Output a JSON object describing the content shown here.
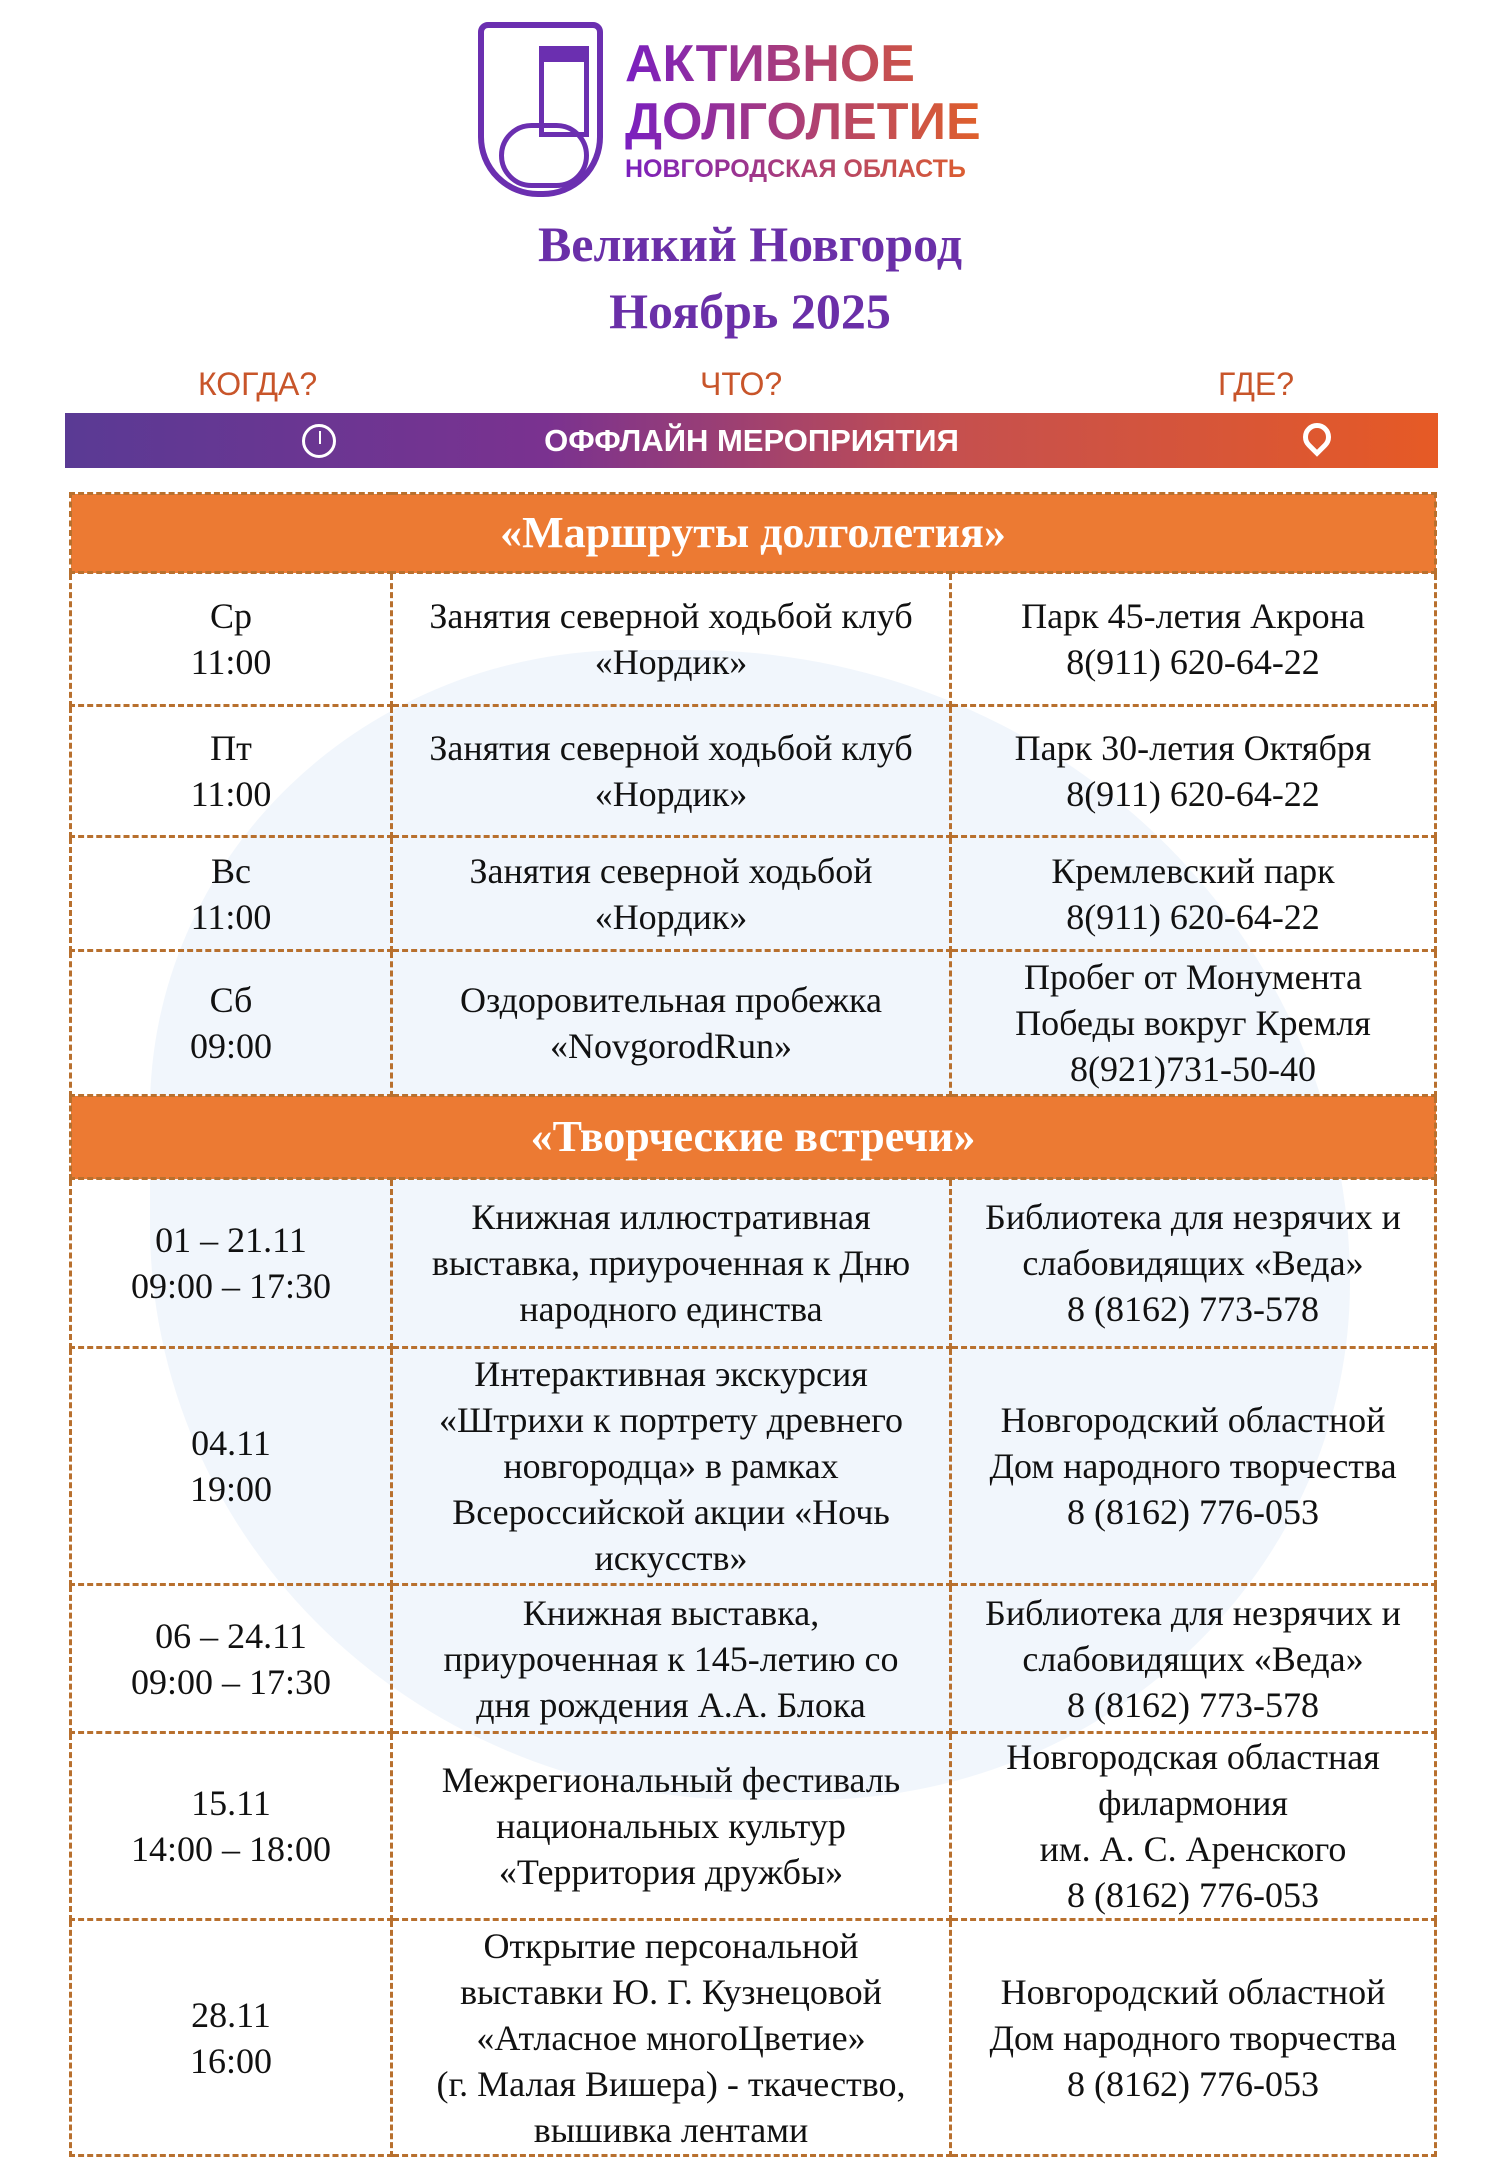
{
  "logo": {
    "line1": "АКТИВНОЕ",
    "line2": "ДОЛГОЛЕТИЕ",
    "line3": "НОВГОРОДСКАЯ ОБЛАСТЬ"
  },
  "title": {
    "city": "Великий Новгород",
    "month": "Ноябрь 2025"
  },
  "columns": {
    "when": "КОГДА?",
    "what": "ЧТО?",
    "where": "ГДЕ?"
  },
  "banner": {
    "label": "ОФФЛАЙН МЕРОПРИЯТИЯ",
    "left_icon": "clock-icon",
    "right_icon": "map-pin-icon"
  },
  "colors": {
    "accent_orange": "#ec7a33",
    "accent_purple": "#6a2fa8"
  },
  "sections": [
    {
      "title": "«Маршруты долголетия»",
      "rows": [
        {
          "when": [
            "Ср",
            "11:00"
          ],
          "what": [
            "Занятия северной ходьбой клуб",
            "«Нордик»"
          ],
          "where": [
            "Парк 45-летия Акрона",
            "8(911) 620-64-22"
          ]
        },
        {
          "when": [
            "Пт",
            "11:00"
          ],
          "what": [
            "Занятия северной ходьбой клуб",
            "«Нордик»"
          ],
          "where": [
            "Парк 30-летия Октября",
            "8(911) 620-64-22"
          ]
        },
        {
          "when": [
            "Вс",
            "11:00"
          ],
          "what": [
            "Занятия северной ходьбой",
            "«Нордик»"
          ],
          "where": [
            "Кремлевский парк",
            "8(911) 620-64-22"
          ]
        },
        {
          "when": [
            "Сб",
            "09:00"
          ],
          "what": [
            "Оздоровительная пробежка",
            "«NovgorodRun»"
          ],
          "where": [
            "Пробег от Монумента",
            "Победы вокруг Кремля",
            "8(921)731-50-40"
          ]
        }
      ]
    },
    {
      "title": "«Творческие встречи»",
      "rows": [
        {
          "when": [
            "01 – 21.11",
            "09:00 – 17:30"
          ],
          "what": [
            "Книжная иллюстративная",
            "выставка, приуроченная к Дню",
            "народного единства"
          ],
          "where": [
            "Библиотека для незрячих и",
            "слабовидящих «Веда»",
            "8 (8162) 773-578"
          ]
        },
        {
          "when": [
            "04.11",
            "19:00"
          ],
          "what": [
            "Интерактивная экскурсия",
            "«Штрихи к портрету древнего",
            "новгородца» в рамках",
            "Всероссийской акции «Ночь",
            "искусств»"
          ],
          "where": [
            "Новгородский областной",
            "Дом народного творчества",
            "8 (8162) 776-053"
          ]
        },
        {
          "when": [
            "06 – 24.11",
            "09:00 – 17:30"
          ],
          "what": [
            "Книжная выставка,",
            "приуроченная к 145-летию со",
            "дня рождения А.А. Блока"
          ],
          "where": [
            "Библиотека для незрячих и",
            "слабовидящих «Веда»",
            "8 (8162) 773-578"
          ]
        },
        {
          "when": [
            "15.11",
            "14:00 – 18:00"
          ],
          "what": [
            "Межрегиональный фестиваль",
            "национальных культур",
            "«Территория дружбы»"
          ],
          "where": [
            "Новгородская областная",
            "филармония",
            "им. А. С. Аренского",
            "8 (8162) 776-053"
          ]
        },
        {
          "when": [
            "28.11",
            "16:00"
          ],
          "what": [
            "Открытие персональной",
            "выставки Ю. Г. Кузнецовой",
            "«Атласное многоЦветие»",
            "(г. Малая Вишера) - ткачество,",
            "вышивка лентами"
          ],
          "where": [
            "Новгородский областной",
            "Дом народного творчества",
            "8 (8162) 776-053"
          ]
        }
      ]
    }
  ]
}
